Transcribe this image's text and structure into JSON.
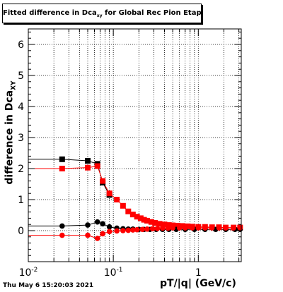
{
  "header": {
    "title_main": "Fitted difference in Dca",
    "title_sub": "xy",
    "title_rest": " for Global Rec Pion EtapT"
  },
  "footer": {
    "timestamp": "Thu May  6 15:20:03 2021"
  },
  "chart_data": {
    "type": "scatter",
    "title": "Fitted difference in Dca_xy for Global Rec Pion EtapT",
    "xlabel": "pT/|q| (GeV/c)",
    "ylabel_main": "difference in Dca",
    "ylabel_sub": "XY",
    "xscale": "log",
    "xlim": [
      0.01,
      3.2
    ],
    "ylim": [
      -1,
      6.5
    ],
    "grid": true,
    "x_tick_labels": [
      {
        "value": 0.01,
        "base": "10",
        "exp": "-2"
      },
      {
        "value": 0.1,
        "base": "10",
        "exp": "-1"
      },
      {
        "value": 1,
        "base": "1",
        "exp": ""
      }
    ],
    "y_ticks": [
      0,
      1,
      2,
      3,
      4,
      5,
      6
    ],
    "series": [
      {
        "marker": "square",
        "color": "#000000",
        "x": [
          0.025,
          0.05,
          0.065,
          0.075,
          0.09
        ],
        "y": [
          2.3,
          2.25,
          2.15,
          1.55,
          1.15
        ]
      },
      {
        "marker": "square",
        "color": "#ff0000",
        "x": [
          0.025,
          0.05,
          0.065,
          0.075,
          0.09,
          0.11,
          0.13,
          0.15,
          0.17,
          0.19,
          0.21,
          0.23,
          0.25,
          0.28,
          0.31,
          0.35,
          0.4,
          0.45,
          0.5,
          0.57,
          0.65,
          0.75,
          0.85,
          1.0,
          1.2,
          1.45,
          1.75,
          2.1,
          2.6,
          3.1
        ],
        "y": [
          2.0,
          2.03,
          2.08,
          1.6,
          1.2,
          1.0,
          0.8,
          0.62,
          0.52,
          0.45,
          0.4,
          0.35,
          0.32,
          0.28,
          0.25,
          0.22,
          0.2,
          0.18,
          0.17,
          0.16,
          0.15,
          0.14,
          0.13,
          0.12,
          0.12,
          0.11,
          0.11,
          0.1,
          0.1,
          0.1
        ]
      },
      {
        "marker": "circle",
        "color": "#000000",
        "x": [
          0.025,
          0.05,
          0.065,
          0.075,
          0.09,
          0.11,
          0.13,
          0.15,
          0.17,
          0.2,
          0.23,
          0.27,
          0.32,
          0.38,
          0.45,
          0.55,
          0.7,
          0.9,
          1.2,
          1.6,
          2.1,
          2.7,
          3.1
        ],
        "y": [
          0.15,
          0.18,
          0.28,
          0.22,
          0.12,
          0.08,
          0.06,
          0.05,
          0.05,
          0.04,
          0.04,
          0.04,
          0.04,
          0.04,
          0.04,
          0.04,
          0.04,
          0.04,
          0.04,
          0.04,
          0.04,
          0.04,
          0.04
        ]
      },
      {
        "marker": "circle",
        "color": "#ff0000",
        "x": [
          0.025,
          0.05,
          0.065,
          0.075,
          0.09,
          0.11,
          0.13,
          0.15,
          0.17,
          0.19,
          0.22,
          0.25,
          0.29,
          0.33,
          0.38,
          0.44,
          0.5,
          0.6,
          0.7,
          0.85,
          1.0,
          1.2,
          1.45,
          1.75,
          2.1,
          2.6,
          3.1
        ],
        "y": [
          -0.15,
          -0.15,
          -0.25,
          -0.1,
          -0.03,
          -0.01,
          0.0,
          0.01,
          0.02,
          0.03,
          0.04,
          0.05,
          0.06,
          0.07,
          0.08,
          0.08,
          0.09,
          0.09,
          0.09,
          0.09,
          0.09,
          0.09,
          0.09,
          0.09,
          0.09,
          0.09,
          0.09
        ]
      }
    ]
  }
}
